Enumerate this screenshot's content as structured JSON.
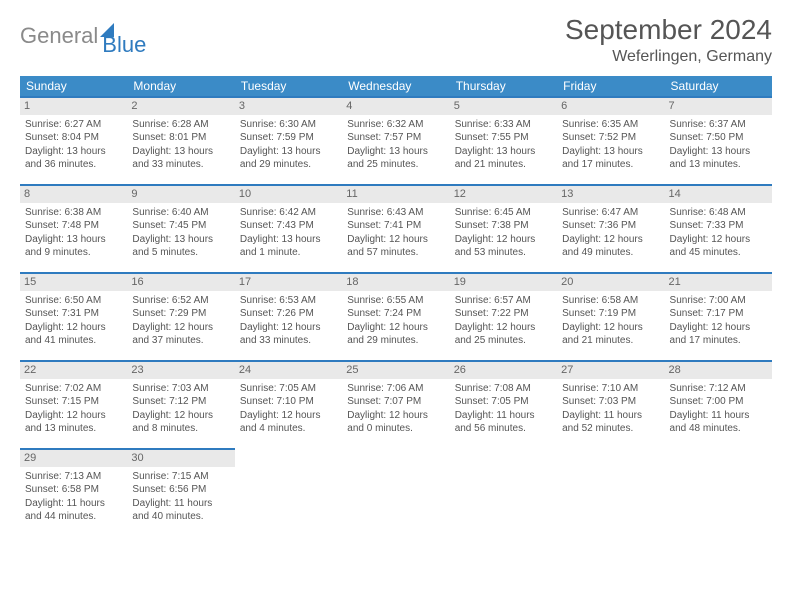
{
  "logo": {
    "general": "General",
    "blue": "Blue"
  },
  "title": "September 2024",
  "location": "Weferlingen, Germany",
  "header_bg": "#3b8bc7",
  "border_color": "#2f7bbf",
  "daynum_bg": "#e9e9e9",
  "text_color": "#555555",
  "days_of_week": [
    "Sunday",
    "Monday",
    "Tuesday",
    "Wednesday",
    "Thursday",
    "Friday",
    "Saturday"
  ],
  "weeks": [
    [
      {
        "n": "1",
        "sr": "Sunrise: 6:27 AM",
        "ss": "Sunset: 8:04 PM",
        "d1": "Daylight: 13 hours",
        "d2": "and 36 minutes."
      },
      {
        "n": "2",
        "sr": "Sunrise: 6:28 AM",
        "ss": "Sunset: 8:01 PM",
        "d1": "Daylight: 13 hours",
        "d2": "and 33 minutes."
      },
      {
        "n": "3",
        "sr": "Sunrise: 6:30 AM",
        "ss": "Sunset: 7:59 PM",
        "d1": "Daylight: 13 hours",
        "d2": "and 29 minutes."
      },
      {
        "n": "4",
        "sr": "Sunrise: 6:32 AM",
        "ss": "Sunset: 7:57 PM",
        "d1": "Daylight: 13 hours",
        "d2": "and 25 minutes."
      },
      {
        "n": "5",
        "sr": "Sunrise: 6:33 AM",
        "ss": "Sunset: 7:55 PM",
        "d1": "Daylight: 13 hours",
        "d2": "and 21 minutes."
      },
      {
        "n": "6",
        "sr": "Sunrise: 6:35 AM",
        "ss": "Sunset: 7:52 PM",
        "d1": "Daylight: 13 hours",
        "d2": "and 17 minutes."
      },
      {
        "n": "7",
        "sr": "Sunrise: 6:37 AM",
        "ss": "Sunset: 7:50 PM",
        "d1": "Daylight: 13 hours",
        "d2": "and 13 minutes."
      }
    ],
    [
      {
        "n": "8",
        "sr": "Sunrise: 6:38 AM",
        "ss": "Sunset: 7:48 PM",
        "d1": "Daylight: 13 hours",
        "d2": "and 9 minutes."
      },
      {
        "n": "9",
        "sr": "Sunrise: 6:40 AM",
        "ss": "Sunset: 7:45 PM",
        "d1": "Daylight: 13 hours",
        "d2": "and 5 minutes."
      },
      {
        "n": "10",
        "sr": "Sunrise: 6:42 AM",
        "ss": "Sunset: 7:43 PM",
        "d1": "Daylight: 13 hours",
        "d2": "and 1 minute."
      },
      {
        "n": "11",
        "sr": "Sunrise: 6:43 AM",
        "ss": "Sunset: 7:41 PM",
        "d1": "Daylight: 12 hours",
        "d2": "and 57 minutes."
      },
      {
        "n": "12",
        "sr": "Sunrise: 6:45 AM",
        "ss": "Sunset: 7:38 PM",
        "d1": "Daylight: 12 hours",
        "d2": "and 53 minutes."
      },
      {
        "n": "13",
        "sr": "Sunrise: 6:47 AM",
        "ss": "Sunset: 7:36 PM",
        "d1": "Daylight: 12 hours",
        "d2": "and 49 minutes."
      },
      {
        "n": "14",
        "sr": "Sunrise: 6:48 AM",
        "ss": "Sunset: 7:33 PM",
        "d1": "Daylight: 12 hours",
        "d2": "and 45 minutes."
      }
    ],
    [
      {
        "n": "15",
        "sr": "Sunrise: 6:50 AM",
        "ss": "Sunset: 7:31 PM",
        "d1": "Daylight: 12 hours",
        "d2": "and 41 minutes."
      },
      {
        "n": "16",
        "sr": "Sunrise: 6:52 AM",
        "ss": "Sunset: 7:29 PM",
        "d1": "Daylight: 12 hours",
        "d2": "and 37 minutes."
      },
      {
        "n": "17",
        "sr": "Sunrise: 6:53 AM",
        "ss": "Sunset: 7:26 PM",
        "d1": "Daylight: 12 hours",
        "d2": "and 33 minutes."
      },
      {
        "n": "18",
        "sr": "Sunrise: 6:55 AM",
        "ss": "Sunset: 7:24 PM",
        "d1": "Daylight: 12 hours",
        "d2": "and 29 minutes."
      },
      {
        "n": "19",
        "sr": "Sunrise: 6:57 AM",
        "ss": "Sunset: 7:22 PM",
        "d1": "Daylight: 12 hours",
        "d2": "and 25 minutes."
      },
      {
        "n": "20",
        "sr": "Sunrise: 6:58 AM",
        "ss": "Sunset: 7:19 PM",
        "d1": "Daylight: 12 hours",
        "d2": "and 21 minutes."
      },
      {
        "n": "21",
        "sr": "Sunrise: 7:00 AM",
        "ss": "Sunset: 7:17 PM",
        "d1": "Daylight: 12 hours",
        "d2": "and 17 minutes."
      }
    ],
    [
      {
        "n": "22",
        "sr": "Sunrise: 7:02 AM",
        "ss": "Sunset: 7:15 PM",
        "d1": "Daylight: 12 hours",
        "d2": "and 13 minutes."
      },
      {
        "n": "23",
        "sr": "Sunrise: 7:03 AM",
        "ss": "Sunset: 7:12 PM",
        "d1": "Daylight: 12 hours",
        "d2": "and 8 minutes."
      },
      {
        "n": "24",
        "sr": "Sunrise: 7:05 AM",
        "ss": "Sunset: 7:10 PM",
        "d1": "Daylight: 12 hours",
        "d2": "and 4 minutes."
      },
      {
        "n": "25",
        "sr": "Sunrise: 7:06 AM",
        "ss": "Sunset: 7:07 PM",
        "d1": "Daylight: 12 hours",
        "d2": "and 0 minutes."
      },
      {
        "n": "26",
        "sr": "Sunrise: 7:08 AM",
        "ss": "Sunset: 7:05 PM",
        "d1": "Daylight: 11 hours",
        "d2": "and 56 minutes."
      },
      {
        "n": "27",
        "sr": "Sunrise: 7:10 AM",
        "ss": "Sunset: 7:03 PM",
        "d1": "Daylight: 11 hours",
        "d2": "and 52 minutes."
      },
      {
        "n": "28",
        "sr": "Sunrise: 7:12 AM",
        "ss": "Sunset: 7:00 PM",
        "d1": "Daylight: 11 hours",
        "d2": "and 48 minutes."
      }
    ],
    [
      {
        "n": "29",
        "sr": "Sunrise: 7:13 AM",
        "ss": "Sunset: 6:58 PM",
        "d1": "Daylight: 11 hours",
        "d2": "and 44 minutes."
      },
      {
        "n": "30",
        "sr": "Sunrise: 7:15 AM",
        "ss": "Sunset: 6:56 PM",
        "d1": "Daylight: 11 hours",
        "d2": "and 40 minutes."
      },
      null,
      null,
      null,
      null,
      null
    ]
  ]
}
